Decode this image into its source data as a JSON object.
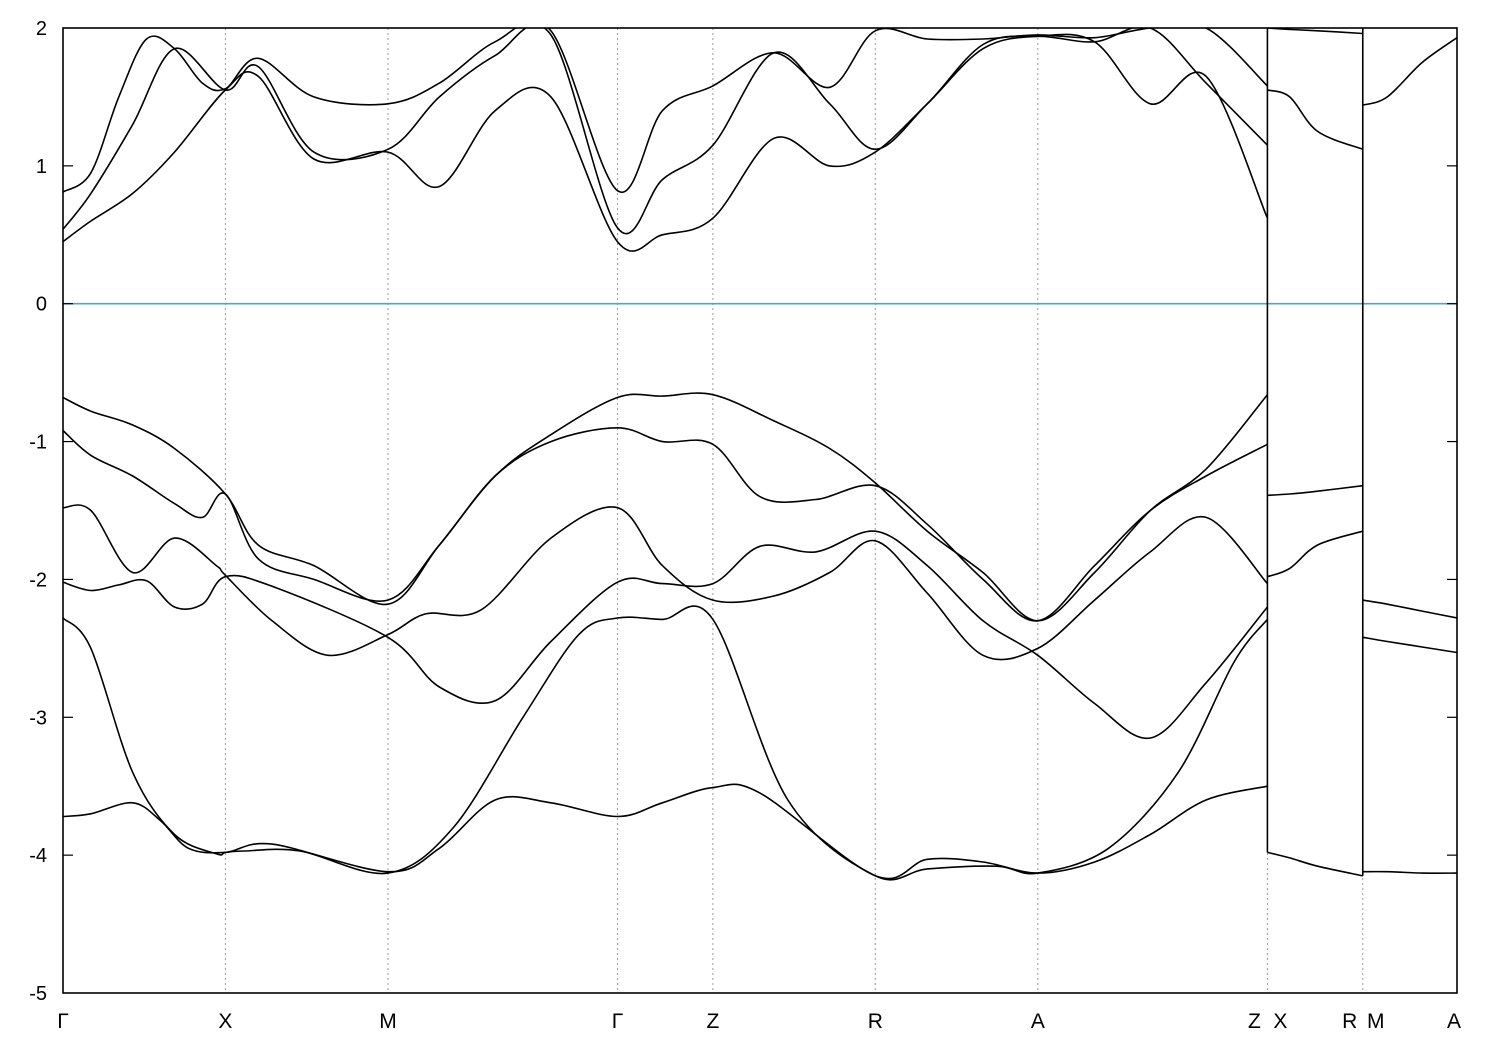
{
  "chart_data": {
    "type": "line",
    "title": "",
    "xlabel": "",
    "ylabel": "",
    "ylim": [
      -5,
      2
    ],
    "yticks": [
      2,
      1,
      0,
      -1,
      -2,
      -3,
      -4,
      -5
    ],
    "xlim": [
      0,
      1
    ],
    "grid": false,
    "fermi_level": {
      "y": 0,
      "color": "#4aa8c6"
    },
    "kpoints": [
      {
        "label": "Γ",
        "x": 0.0
      },
      {
        "label": "X",
        "x": 0.1165
      },
      {
        "label": "M",
        "x": 0.2331
      },
      {
        "label": "Γ",
        "x": 0.3978
      },
      {
        "label": "Z",
        "x": 0.4662
      },
      {
        "label": "R",
        "x": 0.5827
      },
      {
        "label": "A",
        "x": 0.6993
      },
      {
        "label": "Z",
        "x": 0.864
      },
      {
        "label": "X",
        "x": 0.864
      },
      {
        "label": "R",
        "x": 0.9324
      },
      {
        "label": "M",
        "x": 0.9324
      },
      {
        "label": "A",
        "x": 1.0
      }
    ],
    "series": [
      {
        "x": [
          0,
          0.02,
          0.05,
          0.08,
          0.11,
          0.1165,
          0.13,
          0.17,
          0.2331,
          0.28,
          0.33,
          0.37,
          0.3978,
          0.43,
          0.4662,
          0.52,
          0.5827,
          0.62,
          0.67,
          0.6993,
          0.75,
          0.8,
          0.84,
          0.864
        ],
        "y": [
          -2.28,
          -2.5,
          -3.4,
          -3.85,
          -3.99,
          -3.98,
          -3.97,
          -3.97,
          -4.13,
          -3.8,
          -3.0,
          -2.4,
          -2.28,
          -2.29,
          -2.29,
          -3.6,
          -4.15,
          -4.1,
          -4.08,
          -4.13,
          -3.95,
          -3.4,
          -2.6,
          -2.29
        ]
      },
      {
        "x": [
          0,
          0.02,
          0.05,
          0.07,
          0.09,
          0.1165,
          0.15,
          0.2331,
          0.27,
          0.31,
          0.35,
          0.3978,
          0.43,
          0.4662,
          0.5,
          0.5827,
          0.62,
          0.66,
          0.6993,
          0.74,
          0.78,
          0.82,
          0.864
        ],
        "y": [
          -3.72,
          -3.7,
          -3.62,
          -3.75,
          -3.95,
          -3.98,
          -3.92,
          -4.12,
          -3.95,
          -3.6,
          -3.62,
          -3.72,
          -3.62,
          -3.51,
          -3.55,
          -4.15,
          -4.03,
          -4.05,
          -4.13,
          -4.05,
          -3.85,
          -3.6,
          -3.5
        ]
      },
      {
        "x": [
          0,
          0.02,
          0.04,
          0.06,
          0.08,
          0.1,
          0.1165,
          0.15,
          0.2331,
          0.27,
          0.31,
          0.35,
          0.3978,
          0.43,
          0.4662,
          0.5,
          0.54,
          0.5827,
          0.62,
          0.66,
          0.6993,
          0.74,
          0.78,
          0.82,
          0.864
        ],
        "y": [
          -2.02,
          -2.08,
          -2.04,
          -2.01,
          -2.2,
          -2.18,
          -1.98,
          -2.05,
          -2.42,
          -2.78,
          -2.88,
          -2.45,
          -2.02,
          -2.03,
          -2.03,
          -1.76,
          -1.8,
          -1.65,
          -1.9,
          -2.3,
          -2.55,
          -2.9,
          -3.15,
          -2.75,
          -2.2
        ]
      },
      {
        "x": [
          0,
          0.02,
          0.05,
          0.08,
          0.11,
          0.1165,
          0.15,
          0.19,
          0.2331,
          0.26,
          0.3,
          0.35,
          0.3978,
          0.43,
          0.4662,
          0.51,
          0.55,
          0.5827,
          0.62,
          0.66,
          0.6993,
          0.74,
          0.78,
          0.82,
          0.864
        ],
        "y": [
          -1.48,
          -1.5,
          -1.95,
          -1.7,
          -1.9,
          -1.97,
          -2.3,
          -2.55,
          -2.4,
          -2.25,
          -2.22,
          -1.7,
          -1.48,
          -1.9,
          -2.15,
          -2.12,
          -1.95,
          -1.72,
          -2.1,
          -2.55,
          -2.5,
          -2.15,
          -1.8,
          -1.55,
          -2.03
        ]
      },
      {
        "x": [
          0,
          0.02,
          0.05,
          0.08,
          0.1,
          0.1165,
          0.14,
          0.18,
          0.2331,
          0.27,
          0.31,
          0.35,
          0.3978,
          0.43,
          0.4662,
          0.5,
          0.54,
          0.5827,
          0.62,
          0.66,
          0.6993,
          0.74,
          0.78,
          0.82,
          0.864
        ],
        "y": [
          -0.92,
          -1.1,
          -1.25,
          -1.45,
          -1.55,
          -1.38,
          -1.85,
          -2.0,
          -2.15,
          -1.75,
          -1.25,
          -1.0,
          -0.9,
          -1.0,
          -1.02,
          -1.4,
          -1.42,
          -1.32,
          -1.6,
          -2.0,
          -2.3,
          -1.9,
          -1.5,
          -1.25,
          -1.02
        ]
      },
      {
        "x": [
          0,
          0.02,
          0.05,
          0.08,
          0.1165,
          0.14,
          0.18,
          0.2331,
          0.27,
          0.31,
          0.35,
          0.3978,
          0.43,
          0.4662,
          0.51,
          0.55,
          0.5827,
          0.62,
          0.66,
          0.6993,
          0.74,
          0.78,
          0.82,
          0.864
        ],
        "y": [
          -0.68,
          -0.78,
          -0.88,
          -1.05,
          -1.38,
          -1.75,
          -1.9,
          -2.18,
          -1.75,
          -1.25,
          -0.95,
          -0.68,
          -0.67,
          -0.66,
          -0.85,
          -1.05,
          -1.3,
          -1.65,
          -1.95,
          -2.3,
          -1.95,
          -1.5,
          -1.2,
          -0.66
        ]
      },
      {
        "x": [
          0,
          0.02,
          0.05,
          0.08,
          0.1165,
          0.14,
          0.18,
          0.2331,
          0.27,
          0.31,
          0.35,
          0.3978,
          0.43,
          0.4662,
          0.51,
          0.55,
          0.5827,
          0.62,
          0.66,
          0.6993,
          0.74,
          0.78,
          0.82,
          0.864
        ],
        "y": [
          0.45,
          0.6,
          0.8,
          1.1,
          1.55,
          1.65,
          1.05,
          1.1,
          0.85,
          1.4,
          1.5,
          0.45,
          0.5,
          0.62,
          1.2,
          1.0,
          1.1,
          1.45,
          1.85,
          1.94,
          1.9,
          1.45,
          1.65,
          0.62
        ]
      },
      {
        "x": [
          0,
          0.02,
          0.05,
          0.08,
          0.1165,
          0.14,
          0.18,
          0.2331,
          0.27,
          0.31,
          0.35,
          0.3978,
          0.43,
          0.4662,
          0.51,
          0.55,
          0.5827,
          0.62,
          0.66,
          0.6993,
          0.74,
          0.78,
          0.82,
          0.864
        ],
        "y": [
          0.54,
          0.8,
          1.3,
          1.85,
          1.55,
          1.72,
          1.1,
          1.12,
          1.5,
          1.8,
          1.95,
          0.55,
          0.9,
          1.15,
          1.82,
          1.45,
          1.12,
          1.45,
          1.88,
          1.94,
          1.9,
          2.0,
          1.6,
          1.15
        ]
      },
      {
        "x": [
          0,
          0.02,
          0.04,
          0.06,
          0.08,
          0.1,
          0.1165,
          0.14,
          0.18,
          0.2331,
          0.27,
          0.31,
          0.35,
          0.3978,
          0.43,
          0.4662,
          0.51,
          0.55,
          0.5827,
          0.62,
          0.66,
          0.6993,
          0.74,
          0.78,
          0.82,
          0.864
        ],
        "y": [
          0.81,
          0.95,
          1.5,
          1.92,
          1.85,
          1.6,
          1.56,
          1.78,
          1.5,
          1.45,
          1.6,
          1.9,
          1.98,
          0.82,
          1.4,
          1.58,
          1.82,
          1.57,
          1.98,
          1.92,
          1.92,
          1.95,
          1.93,
          2.0,
          2.0,
          1.58
        ]
      },
      {
        "x": [
          0.864,
          0.88,
          0.9,
          0.9324
        ],
        "y": [
          -1.39,
          -1.38,
          -1.36,
          -1.32
        ]
      },
      {
        "x": [
          0.864,
          0.88,
          0.9,
          0.9324
        ],
        "y": [
          -1.98,
          -1.92,
          -1.75,
          -1.65
        ]
      },
      {
        "x": [
          0.864,
          0.88,
          0.9,
          0.9324
        ],
        "y": [
          -3.98,
          -4.02,
          -4.08,
          -4.15
        ]
      },
      {
        "x": [
          0.864,
          0.88,
          0.9,
          0.9324
        ],
        "y": [
          1.55,
          1.5,
          1.25,
          1.12
        ]
      },
      {
        "x": [
          0.864,
          0.88,
          0.9,
          0.9324
        ],
        "y": [
          2.0,
          1.99,
          1.98,
          1.96
        ]
      },
      {
        "x": [
          0.9324,
          0.95,
          0.975,
          1.0
        ],
        "y": [
          -2.15,
          -2.18,
          -2.23,
          -2.28
        ]
      },
      {
        "x": [
          0.9324,
          0.95,
          0.975,
          1.0
        ],
        "y": [
          -2.42,
          -2.45,
          -2.49,
          -2.53
        ]
      },
      {
        "x": [
          0.9324,
          0.95,
          0.975,
          1.0
        ],
        "y": [
          -4.12,
          -4.12,
          -4.13,
          -4.13
        ]
      },
      {
        "x": [
          0.9324,
          0.95,
          0.975,
          1.0
        ],
        "y": [
          1.44,
          1.5,
          1.75,
          1.93
        ]
      }
    ],
    "discontinuities": [
      {
        "x": 0.864,
        "y": [
          -3.98,
          2.0
        ]
      },
      {
        "x": 0.9324,
        "y": [
          -4.15,
          2.0
        ]
      }
    ]
  }
}
